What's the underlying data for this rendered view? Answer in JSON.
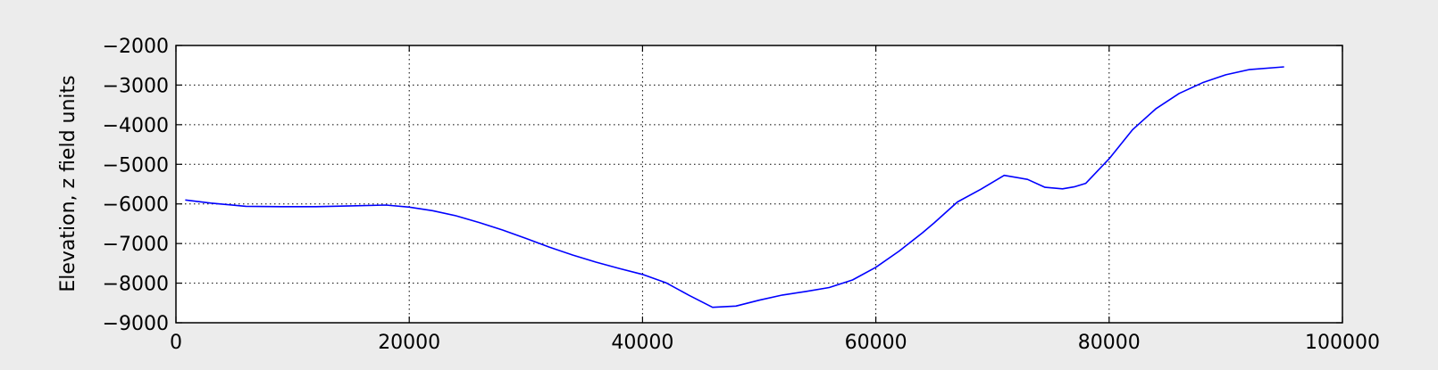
{
  "chart_data": {
    "type": "line",
    "title": "",
    "xlabel": "",
    "ylabel": "Elevation, z field units",
    "xlim": [
      0,
      100000
    ],
    "ylim": [
      -9000,
      -2000
    ],
    "grid": true,
    "grid_style": "dotted",
    "xticks": [
      {
        "value": 0,
        "label": "0"
      },
      {
        "value": 20000,
        "label": "20000"
      },
      {
        "value": 40000,
        "label": "40000"
      },
      {
        "value": 60000,
        "label": "60000"
      },
      {
        "value": 80000,
        "label": "80000"
      },
      {
        "value": 100000,
        "label": "100000"
      }
    ],
    "yticks": [
      {
        "value": -2000,
        "label": "−2000"
      },
      {
        "value": -3000,
        "label": "−3000"
      },
      {
        "value": -4000,
        "label": "−4000"
      },
      {
        "value": -5000,
        "label": "−5000"
      },
      {
        "value": -6000,
        "label": "−6000"
      },
      {
        "value": -7000,
        "label": "−7000"
      },
      {
        "value": -8000,
        "label": "−8000"
      },
      {
        "value": -9000,
        "label": "−9000"
      }
    ],
    "series": [
      {
        "color": "#0000ff",
        "x": [
          800,
          3000,
          6000,
          9000,
          12000,
          15000,
          18000,
          20000,
          22000,
          24000,
          26000,
          28000,
          30000,
          32000,
          34000,
          36000,
          38000,
          40000,
          42000,
          44000,
          46000,
          48000,
          50000,
          52000,
          54000,
          56000,
          58000,
          60000,
          62000,
          64000,
          65000,
          67000,
          69000,
          71000,
          73000,
          74500,
          76000,
          77000,
          78000,
          80000,
          82000,
          84000,
          86000,
          88000,
          90000,
          92000,
          95000
        ],
        "y": [
          -5900,
          -5980,
          -6060,
          -6070,
          -6070,
          -6050,
          -6030,
          -6080,
          -6170,
          -6300,
          -6470,
          -6660,
          -6870,
          -7090,
          -7290,
          -7470,
          -7630,
          -7780,
          -7990,
          -8310,
          -8610,
          -8580,
          -8430,
          -8300,
          -8210,
          -8110,
          -7920,
          -7600,
          -7190,
          -6730,
          -6480,
          -5950,
          -5630,
          -5280,
          -5380,
          -5580,
          -5620,
          -5570,
          -5480,
          -4860,
          -4130,
          -3600,
          -3210,
          -2940,
          -2740,
          -2610,
          -2540
        ]
      }
    ]
  }
}
